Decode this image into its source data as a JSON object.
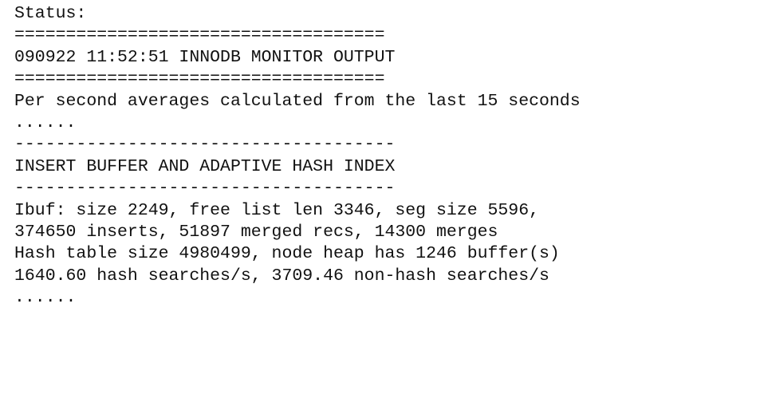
{
  "lines": [
    "Status:",
    "====================================",
    "090922 11:52:51 INNODB MONITOR OUTPUT",
    "====================================",
    "Per second averages calculated from the last 15 seconds",
    "......",
    "-------------------------------------",
    "INSERT BUFFER AND ADAPTIVE HASH INDEX",
    "-------------------------------------",
    "Ibuf: size 2249, free list len 3346, seg size 5596,",
    "374650 inserts, 51897 merged recs, 14300 merges",
    "Hash table size 4980499, node heap has 1246 buffer(s)",
    "1640.60 hash searches/s, 3709.46 non-hash searches/s",
    "......"
  ]
}
